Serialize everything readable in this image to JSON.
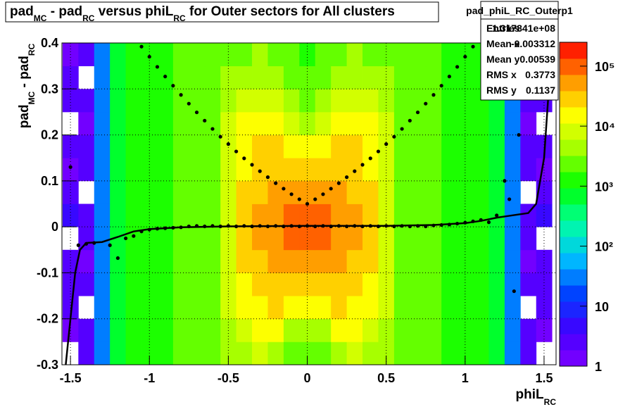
{
  "chart_data": {
    "type": "heatmap",
    "title_parts": [
      "pad",
      "MC",
      " - pad",
      "RC",
      " versus phiL",
      "RC",
      " for Outer sectors for All clusters"
    ],
    "x_label_parts": [
      "phiL",
      "RC"
    ],
    "y_label_parts": [
      "pad",
      "MC",
      " - pad",
      "RC"
    ],
    "xlim": [
      -1.554,
      1.576
    ],
    "ylim": [
      -0.3,
      0.4
    ],
    "xticks": [
      -1.5,
      -1,
      -0.5,
      0,
      0.5,
      1,
      1.5
    ],
    "yticks": [
      -0.3,
      -0.2,
      -0.1,
      0,
      0.1,
      0.2,
      0.3,
      0.4
    ],
    "grid": true,
    "zlim": [
      1,
      250000
    ],
    "zlog": true,
    "zticks": [
      1,
      10,
      {
        "value": 100,
        "label": "10²"
      },
      {
        "value": 1000,
        "label": "10³"
      },
      {
        "value": 10000,
        "label": "10⁴"
      },
      {
        "value": 100000,
        "label": "10⁵"
      }
    ],
    "palette": [
      "#8000ff",
      "#4000ff",
      "#0040ff",
      "#00c0ff",
      "#00ffa0",
      "#00ff00",
      "#a0ff00",
      "#ffff00",
      "#ff9000",
      "#ff0000"
    ],
    "xbins": [
      -1.55,
      -1.45,
      -1.35,
      -1.25,
      -1.15,
      -1.05,
      -0.95,
      -0.85,
      -0.75,
      -0.65,
      -0.55,
      -0.45,
      -0.35,
      -0.25,
      -0.15,
      -0.05,
      0.05,
      0.15,
      0.25,
      0.35,
      0.45,
      0.55,
      0.65,
      0.75,
      0.85,
      0.95,
      1.05,
      1.15,
      1.25,
      1.35,
      1.45,
      1.55
    ],
    "ybins": [
      -0.3,
      -0.25,
      -0.2,
      -0.15,
      -0.1,
      -0.05,
      0,
      0.05,
      0.1,
      0.15,
      0.2,
      0.25,
      0.3,
      0.35,
      0.4
    ],
    "z": [
      [
        0,
        2,
        30,
        800,
        1500,
        1500,
        1500,
        1800,
        2000,
        2500,
        4000,
        6000,
        8000,
        6000,
        3000,
        2500,
        3000,
        6000,
        8000,
        6000,
        4000,
        2500,
        2000,
        1800,
        1500,
        1500,
        1500,
        800,
        30,
        2,
        0
      ],
      [
        1,
        3,
        30,
        800,
        1500,
        1500,
        1500,
        1800,
        2000,
        2500,
        6000,
        10000,
        12000,
        12000,
        6000,
        4000,
        6000,
        12000,
        12000,
        10000,
        6000,
        2500,
        2000,
        1800,
        1500,
        1500,
        1500,
        800,
        30,
        3,
        1
      ],
      [
        2,
        0,
        30,
        800,
        1500,
        1500,
        1500,
        1800,
        2000,
        2500,
        7000,
        14000,
        20000,
        22000,
        18000,
        12000,
        18000,
        22000,
        20000,
        14000,
        7000,
        2500,
        2000,
        1800,
        1500,
        1500,
        1500,
        800,
        30,
        0,
        2
      ],
      [
        3,
        2,
        30,
        800,
        1500,
        1500,
        1500,
        1800,
        2000,
        2500,
        9000,
        20000,
        30000,
        35000,
        35000,
        30000,
        35000,
        35000,
        30000,
        20000,
        9000,
        2500,
        2000,
        1800,
        1500,
        1500,
        1500,
        800,
        30,
        2,
        3
      ],
      [
        2,
        1,
        30,
        800,
        1500,
        1500,
        1500,
        1800,
        2000,
        2500,
        10000,
        22000,
        35000,
        50000,
        60000,
        60000,
        60000,
        50000,
        35000,
        22000,
        10000,
        2500,
        2000,
        1800,
        1500,
        1500,
        1500,
        800,
        30,
        1,
        2
      ],
      [
        0,
        3,
        30,
        800,
        1500,
        1500,
        1500,
        1800,
        2000,
        2500,
        10000,
        25000,
        40000,
        60000,
        80000,
        80000,
        80000,
        60000,
        40000,
        25000,
        10000,
        2500,
        2000,
        1800,
        1500,
        1500,
        1500,
        800,
        30,
        3,
        0
      ],
      [
        4,
        2,
        30,
        800,
        1500,
        1500,
        1500,
        1800,
        2000,
        2500,
        10000,
        25000,
        40000,
        60000,
        80000,
        80000,
        80000,
        60000,
        40000,
        25000,
        10000,
        2500,
        2000,
        1800,
        1500,
        1500,
        1500,
        800,
        30,
        2,
        4
      ],
      [
        2,
        0,
        30,
        800,
        1500,
        1500,
        1500,
        1800,
        2000,
        2500,
        10000,
        22000,
        35000,
        50000,
        60000,
        60000,
        60000,
        50000,
        35000,
        22000,
        10000,
        2500,
        2000,
        1800,
        1500,
        1500,
        1500,
        800,
        30,
        0,
        2
      ],
      [
        1,
        3,
        30,
        800,
        1500,
        1500,
        1500,
        1800,
        2000,
        2500,
        9000,
        20000,
        30000,
        35000,
        35000,
        30000,
        35000,
        35000,
        30000,
        20000,
        9000,
        2500,
        2000,
        1800,
        1500,
        1500,
        1500,
        800,
        30,
        3,
        1
      ],
      [
        3,
        2,
        30,
        800,
        1500,
        1500,
        1500,
        1800,
        2000,
        2500,
        8000,
        15000,
        22000,
        25000,
        20000,
        15000,
        20000,
        25000,
        22000,
        15000,
        8000,
        2500,
        2000,
        1800,
        1500,
        1500,
        1500,
        800,
        30,
        2,
        3
      ],
      [
        0,
        1,
        30,
        800,
        1500,
        1500,
        1500,
        1800,
        2000,
        2500,
        7000,
        12000,
        15000,
        15000,
        9000,
        6000,
        9000,
        15000,
        15000,
        12000,
        7000,
        2500,
        2000,
        1800,
        1500,
        1500,
        1500,
        800,
        30,
        1,
        0
      ],
      [
        2,
        2,
        30,
        800,
        1500,
        1500,
        1500,
        1800,
        2000,
        2500,
        5000,
        8000,
        10000,
        8000,
        4000,
        3000,
        4000,
        8000,
        10000,
        8000,
        5000,
        2500,
        2000,
        1800,
        1500,
        1500,
        1500,
        800,
        30,
        2,
        2
      ],
      [
        3,
        0,
        30,
        800,
        1500,
        1500,
        1500,
        1800,
        2000,
        2500,
        3500,
        5000,
        6000,
        4000,
        2500,
        2000,
        2500,
        4000,
        6000,
        5000,
        3500,
        2500,
        2000,
        1800,
        1500,
        1500,
        1500,
        800,
        30,
        0,
        3
      ],
      [
        1,
        3,
        30,
        800,
        1500,
        1500,
        1500,
        1800,
        2000,
        2500,
        2500,
        3000,
        3500,
        2500,
        1800,
        1500,
        1800,
        2500,
        3500,
        3000,
        2500,
        2500,
        2000,
        1800,
        1500,
        1500,
        1500,
        800,
        30,
        3,
        1
      ]
    ],
    "series": [
      {
        "type": "scatter",
        "color": "#000000",
        "x": [
          -1.05,
          -1.0,
          -0.95,
          -0.9,
          -0.85,
          -0.8,
          -0.75,
          -0.7,
          -0.65,
          -0.6,
          -0.55,
          -0.5,
          -0.45,
          -0.4,
          -0.35,
          -0.3,
          -0.25,
          -0.2,
          -0.15,
          -0.1,
          -0.05,
          0,
          0.05,
          0.1,
          0.15,
          0.2,
          0.25,
          0.3,
          0.35,
          0.4,
          0.45,
          0.5,
          0.55,
          0.6,
          0.65,
          0.7,
          0.75,
          0.8,
          0.85,
          0.9,
          0.95,
          1.0,
          1.05
        ],
        "values": [
          0.392,
          0.37,
          0.348,
          0.327,
          0.307,
          0.287,
          0.268,
          0.249,
          0.231,
          0.213,
          0.196,
          0.18,
          0.164,
          0.149,
          0.135,
          0.121,
          0.108,
          0.095,
          0.083,
          0.071,
          0.06,
          0.05,
          0.06,
          0.071,
          0.083,
          0.095,
          0.108,
          0.121,
          0.135,
          0.149,
          0.164,
          0.18,
          0.196,
          0.213,
          0.231,
          0.249,
          0.268,
          0.287,
          0.307,
          0.327,
          0.348,
          0.37,
          0.392
        ]
      },
      {
        "type": "scatter",
        "color": "#000000",
        "x": [
          -1.5,
          -1.45,
          -1.4,
          -1.35,
          -1.25,
          -1.2,
          -1.15,
          -1.1,
          -1.05,
          -1.0,
          -0.95,
          -0.9,
          -0.85,
          -0.8,
          -0.75,
          -0.7,
          -0.65,
          -0.6,
          -0.55,
          -0.5,
          -0.45,
          -0.4,
          -0.35,
          -0.3,
          -0.25,
          -0.2,
          -0.15,
          -0.1,
          -0.05,
          0,
          0.05,
          0.1,
          0.15,
          0.2,
          0.25,
          0.3,
          0.35,
          0.4,
          0.45,
          0.5,
          0.55,
          0.6,
          0.65,
          0.7,
          0.75,
          0.8,
          0.85,
          0.9,
          0.95,
          1.0,
          1.05,
          1.1,
          1.15,
          1.2,
          1.25,
          1.28,
          1.31,
          1.34
        ],
        "values": [
          0.13,
          -0.04,
          -0.037,
          -0.035,
          -0.04,
          -0.068,
          -0.025,
          -0.02,
          -0.01,
          -0.006,
          -0.004,
          -0.003,
          -0.002,
          -0.001,
          0.001,
          0.002,
          0.001,
          0.002,
          0.001,
          0.002,
          0.001,
          0.002,
          0.001,
          0.002,
          0.001,
          0.002,
          0.001,
          0.002,
          0.001,
          0.002,
          0.001,
          0.002,
          0.001,
          0.002,
          0.001,
          0.002,
          0.001,
          0.002,
          0.001,
          0.002,
          0.001,
          0.002,
          0.001,
          0.002,
          0.001,
          0.003,
          0.004,
          0.005,
          0.007,
          0.009,
          0.012,
          0.015,
          0.01,
          0.025,
          0.1,
          0.06,
          -0.14,
          0.2
        ]
      },
      {
        "type": "line",
        "color": "#000000",
        "x": [
          -1.53,
          -1.5,
          -1.47,
          -1.44,
          -1.4,
          -1.3,
          -1.2,
          -1.1,
          -1.0,
          -0.8,
          -0.5,
          0,
          0.5,
          0.8,
          1.0,
          1.1,
          1.2,
          1.3,
          1.4,
          1.45,
          1.5,
          1.53,
          1.55
        ],
        "values": [
          -0.3,
          -0.2,
          -0.1,
          -0.05,
          -0.035,
          -0.033,
          -0.022,
          -0.01,
          -0.005,
          -0.001,
          0.001,
          0.002,
          0.002,
          0.004,
          0.008,
          0.013,
          0.02,
          0.025,
          0.03,
          0.05,
          0.15,
          0.3,
          0.4
        ]
      }
    ],
    "stats": {
      "title": "pad_phiL_RC_Outerp1",
      "rows": [
        [
          "Entries",
          "1.317841e+08"
        ],
        [
          "Mean x",
          "-0.003312"
        ],
        [
          "Mean y",
          "0.00539"
        ],
        [
          "RMS x",
          "0.3773"
        ],
        [
          "RMS y",
          "0.1137"
        ]
      ]
    }
  }
}
